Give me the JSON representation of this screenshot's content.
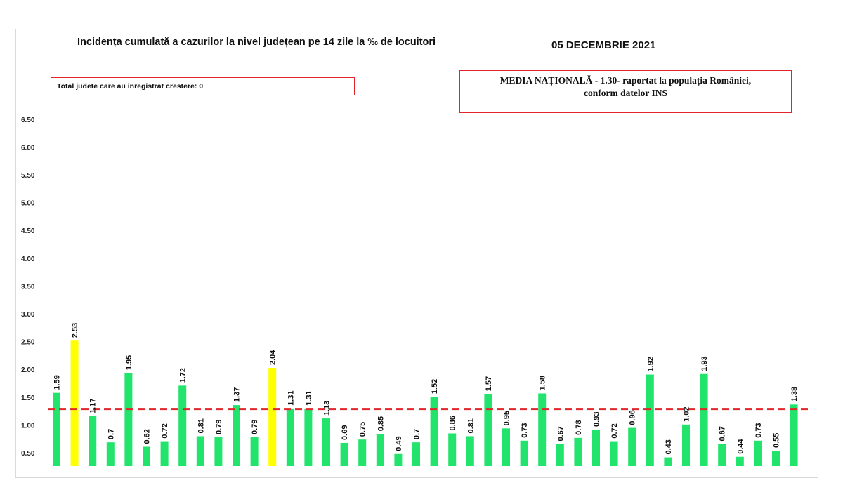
{
  "header": {
    "title": "Incidența cumulată a cazurilor la nivel județean pe 14 zile la ‰ de locuitori",
    "date": "05 DECEMBRIE 2021"
  },
  "info_box": {
    "text": "Total judete care au inregistrat crestere: 0"
  },
  "national_box": {
    "line1": "MEDIA NAȚIONALĂ - 1.30-  raportat la populația României,",
    "line2": "conform datelor INS"
  },
  "colors": {
    "bar": "#22e36b",
    "bar_highlight": "#ffff00",
    "average_line": "#e0262a",
    "box_border": "#e0262a"
  },
  "chart_data": {
    "type": "bar",
    "y_ticks": [
      "0.50",
      "1.00",
      "1.50",
      "2.00",
      "2.50",
      "3.00",
      "3.50",
      "4.00",
      "4.50",
      "5.00",
      "5.50",
      "6.00",
      "6.50"
    ],
    "ylim_visible": [
      0.5,
      6.5
    ],
    "grid": false,
    "average_line_value": 1.3,
    "values": [
      1.59,
      2.53,
      1.17,
      0.7,
      1.95,
      0.62,
      0.72,
      1.72,
      0.81,
      0.79,
      1.37,
      0.79,
      2.04,
      1.31,
      1.31,
      1.13,
      0.69,
      0.75,
      0.85,
      0.49,
      0.7,
      1.52,
      0.86,
      0.81,
      1.57,
      0.95,
      0.73,
      1.58,
      0.67,
      0.78,
      0.93,
      0.72,
      0.96,
      1.92,
      0.43,
      1.02,
      1.93,
      0.67,
      0.44,
      0.73,
      0.55,
      1.38
    ],
    "labels": [
      "1.59",
      "2.53",
      "1.17",
      "0.7",
      "1.95",
      "0.62",
      "0.72",
      "1.72",
      "0.81",
      "0.79",
      "1.37",
      "0.79",
      "2.04",
      "1.31",
      "1.31",
      "1.13",
      "0.69",
      "0.75",
      "0.85",
      "0.49",
      "0.7",
      "1.52",
      "0.86",
      "0.81",
      "1.57",
      "0.95",
      "0.73",
      "1.58",
      "0.67",
      "0.78",
      "0.93",
      "0.72",
      "0.96",
      "1.92",
      "0.43",
      "1.02",
      "1.93",
      "0.67",
      "0.44",
      "0.73",
      "0.55",
      "1.38"
    ],
    "highlighted": [
      false,
      true,
      false,
      false,
      false,
      false,
      false,
      false,
      false,
      false,
      false,
      false,
      true,
      false,
      false,
      false,
      false,
      false,
      false,
      false,
      false,
      false,
      false,
      false,
      false,
      false,
      false,
      false,
      false,
      false,
      false,
      false,
      false,
      false,
      false,
      false,
      false,
      false,
      false,
      false,
      false,
      false
    ]
  }
}
